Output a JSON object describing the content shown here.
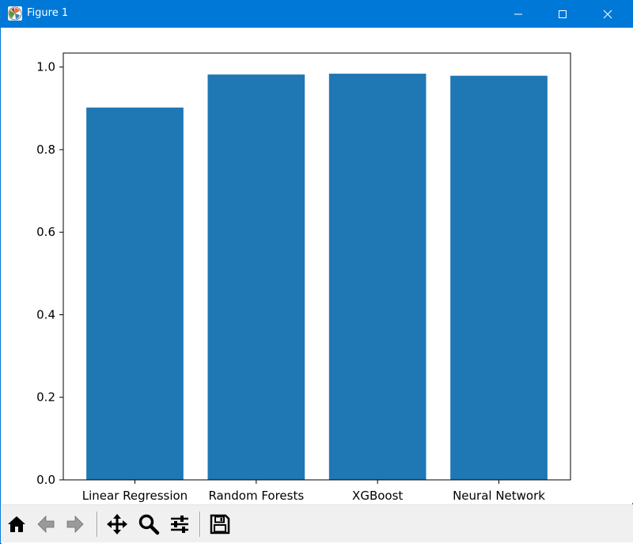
{
  "window": {
    "title": "Figure 1",
    "controls": [
      "minimize",
      "maximize",
      "close"
    ],
    "accent_color": "#0078d7"
  },
  "toolbar": {
    "buttons": [
      {
        "name": "home",
        "icon": "home-icon"
      },
      {
        "name": "back",
        "icon": "arrow-left-icon"
      },
      {
        "name": "forward",
        "icon": "arrow-right-icon"
      },
      {
        "name": "pan",
        "icon": "move-icon"
      },
      {
        "name": "zoom",
        "icon": "magnifier-icon"
      },
      {
        "name": "subplots",
        "icon": "sliders-icon"
      },
      {
        "name": "save",
        "icon": "floppy-disk-icon"
      }
    ]
  },
  "chart_data": {
    "type": "bar",
    "categories": [
      "Linear Regression",
      "Random Forests",
      "XGBoost",
      "Neural Network"
    ],
    "values": [
      0.902,
      0.982,
      0.984,
      0.979
    ],
    "title": "",
    "xlabel": "",
    "ylabel": "",
    "ylim": [
      0,
      1.034
    ],
    "yticks": [
      0.0,
      0.2,
      0.4,
      0.6,
      0.8,
      1.0
    ],
    "ytick_labels": [
      "0.0",
      "0.2",
      "0.4",
      "0.6",
      "0.8",
      "1.0"
    ],
    "bar_color": "#1f77b4",
    "grid": false,
    "legend": "none"
  }
}
